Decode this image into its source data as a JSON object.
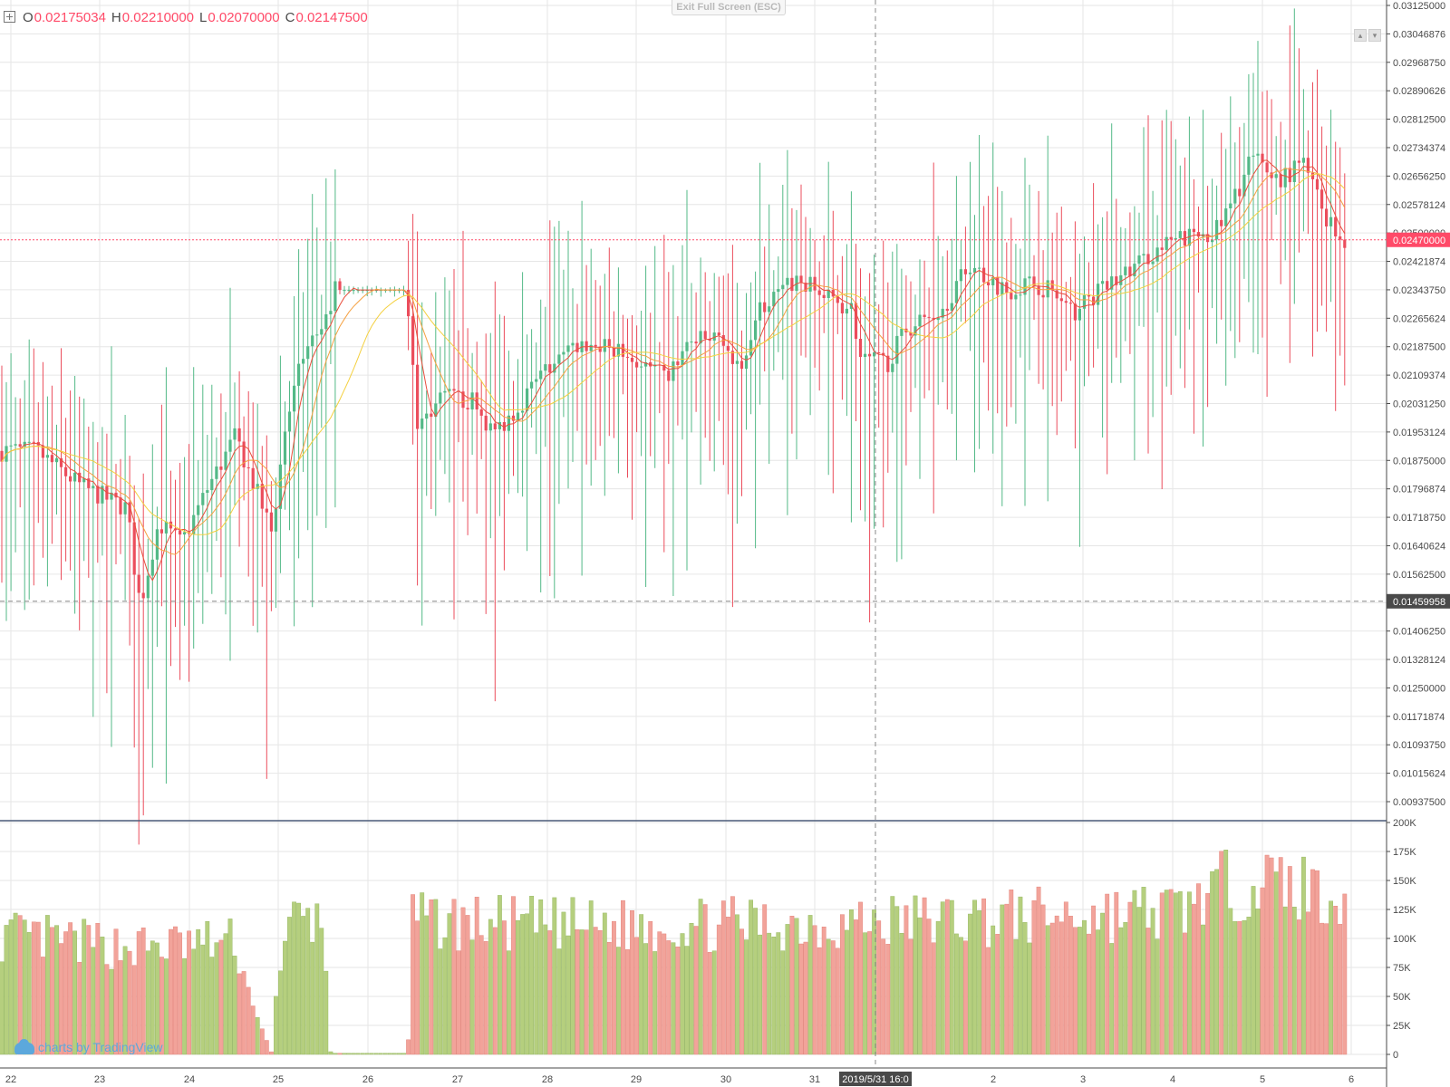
{
  "ohlc": {
    "o_key": "O",
    "o": "0.02175034",
    "h_key": "H",
    "h": "0.02210000",
    "l_key": "L",
    "l": "0.02070000",
    "c_key": "C",
    "c": "0.02147500"
  },
  "toolbar": {
    "exit_fullscreen": "Exit Full Screen (ESC)"
  },
  "watermark": "charts by TradingView",
  "colors": {
    "up": "#53b987",
    "down": "#eb4d5c",
    "vol_up": "#b5cf7e",
    "vol_down": "#f2a39a",
    "ma_fast": "#e84e3c",
    "ma_mid": "#f5a142",
    "ma_slow": "#f4d03f",
    "grid": "#e6e6e6",
    "last_price": "#ff4a68",
    "crosshair": "#8a8a8a"
  },
  "chart_data": {
    "type": "candlestick",
    "price_axis_ticks": [
      "0.03125000",
      "0.03046876",
      "0.02968750",
      "0.02890626",
      "0.02812500",
      "0.02734374",
      "0.02656250",
      "0.02578124",
      "0.02500000",
      "0.02421874",
      "0.02343750",
      "0.02265624",
      "0.02187500",
      "0.02109374",
      "0.02031250",
      "0.01953124",
      "0.01875000",
      "0.01796874",
      "0.01718750",
      "0.01640624",
      "0.01562500",
      "0.01484374",
      "0.01406250",
      "0.01328124",
      "0.01250000",
      "0.01171874",
      "0.01093750",
      "0.01015624",
      "0.00937500"
    ],
    "price_ylim": [
      0.009,
      0.03125
    ],
    "volume_axis_ticks": [
      "200K",
      "175K",
      "150K",
      "125K",
      "100K",
      "75K",
      "50K",
      "25K",
      "0"
    ],
    "volume_ylim": [
      0,
      200000
    ],
    "date_ticks": [
      "22",
      "23",
      "24",
      "25",
      "26",
      "27",
      "28",
      "29",
      "30",
      "31",
      "2",
      "3",
      "4",
      "5",
      "6"
    ],
    "last_price": "0.02470000",
    "crosshair_price": "0.01459958",
    "crosshair_time": "2019/5/31 16:0",
    "anchors": [
      [
        0,
        0.0188
      ],
      [
        40,
        0.0188
      ],
      [
        90,
        0.0178
      ],
      [
        140,
        0.0172
      ],
      [
        150,
        0.0152
      ],
      [
        155,
        0.0145
      ],
      [
        175,
        0.0168
      ],
      [
        200,
        0.0162
      ],
      [
        230,
        0.0178
      ],
      [
        260,
        0.0192
      ],
      [
        290,
        0.0172
      ],
      [
        300,
        0.0165
      ],
      [
        315,
        0.0195
      ],
      [
        335,
        0.0215
      ],
      [
        360,
        0.0225
      ],
      [
        370,
        0.0233
      ],
      [
        449,
        0.0233
      ],
      [
        460,
        0.0195
      ],
      [
        490,
        0.0203
      ],
      [
        520,
        0.0202
      ],
      [
        545,
        0.0193
      ],
      [
        570,
        0.02
      ],
      [
        600,
        0.021
      ],
      [
        640,
        0.0218
      ],
      [
        680,
        0.0216
      ],
      [
        735,
        0.0208
      ],
      [
        760,
        0.0218
      ],
      [
        800,
        0.022
      ],
      [
        810,
        0.0208
      ],
      [
        840,
        0.0228
      ],
      [
        880,
        0.0236
      ],
      [
        910,
        0.0231
      ],
      [
        940,
        0.0228
      ],
      [
        950,
        0.0213
      ],
      [
        980,
        0.0213
      ],
      [
        1000,
        0.0222
      ],
      [
        1040,
        0.0228
      ],
      [
        1070,
        0.024
      ],
      [
        1110,
        0.0233
      ],
      [
        1140,
        0.0235
      ],
      [
        1160,
        0.0233
      ],
      [
        1180,
        0.0226
      ],
      [
        1210,
        0.0232
      ],
      [
        1245,
        0.0238
      ],
      [
        1270,
        0.0243
      ],
      [
        1300,
        0.0247
      ],
      [
        1345,
        0.025
      ],
      [
        1365,
        0.026
      ],
      [
        1380,
        0.027
      ],
      [
        1410,
        0.0264
      ],
      [
        1440,
        0.0268
      ],
      [
        1460,
        0.0255
      ],
      [
        1480,
        0.0247
      ]
    ],
    "volume_anchors": [
      [
        0,
        100000
      ],
      [
        150,
        90000
      ],
      [
        260,
        95000
      ],
      [
        275,
        50000
      ],
      [
        300,
        1000
      ],
      [
        305,
        65000
      ],
      [
        325,
        115000
      ],
      [
        355,
        110000
      ],
      [
        360,
        70000
      ],
      [
        365,
        1000
      ],
      [
        450,
        1000
      ],
      [
        455,
        112000
      ],
      [
        650,
        108000
      ],
      [
        900,
        110000
      ],
      [
        1100,
        115000
      ],
      [
        1300,
        120000
      ],
      [
        1340,
        140000
      ],
      [
        1390,
        145000
      ],
      [
        1480,
        135000
      ]
    ]
  }
}
